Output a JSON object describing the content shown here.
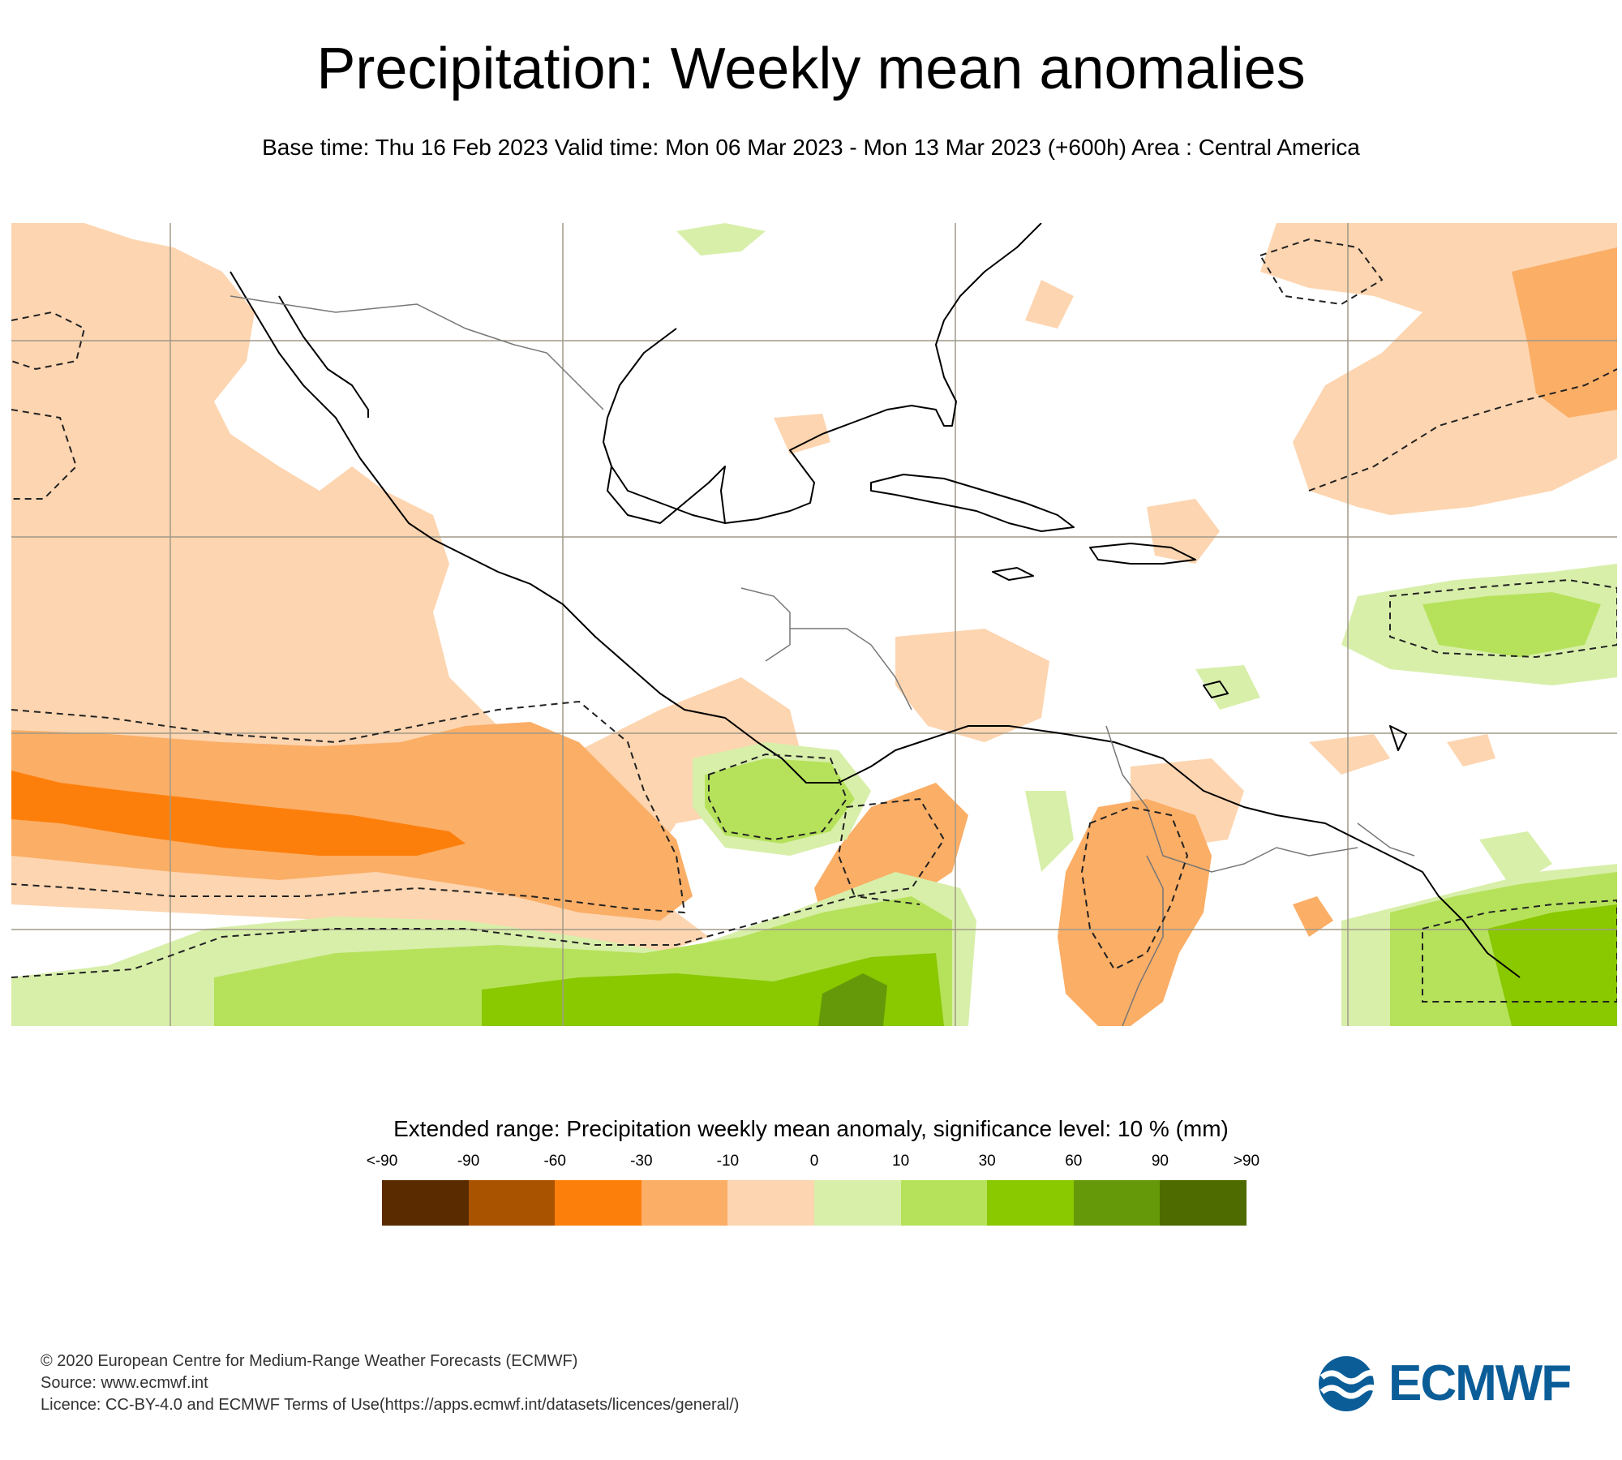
{
  "header": {
    "title": "Precipitation: Weekly mean anomalies",
    "subtitle": "Base time: Thu 16 Feb 2023 Valid time: Mon 06 Mar 2023 - Mon 13 Mar 2023 (+600h) Area : Central America"
  },
  "map": {
    "region": "Central America",
    "colors": {
      "light_orange": "#fdd5b0",
      "mid_orange": "#fbae66",
      "strong_orange": "#fd7f0b",
      "light_green": "#d8efaa",
      "mid_green": "#b6e25b",
      "strong_green": "#8ac800",
      "dark_green": "#66990a",
      "coastline": "#000000",
      "border": "#777777",
      "grid": "#a09a88"
    }
  },
  "legend": {
    "title": "Extended range: Precipitation weekly mean anomaly, significance level: 10 % (mm)",
    "labels": [
      "<-90",
      "-90",
      "-60",
      "-30",
      "-10",
      "0",
      "10",
      "30",
      "60",
      "90",
      ">90"
    ],
    "colors": [
      "#5b2b00",
      "#a95200",
      "#fd7f0b",
      "#fbae66",
      "#fdd5b0",
      "#d8efaa",
      "#b6e25b",
      "#8ac800",
      "#66990a",
      "#4e6b00"
    ]
  },
  "footer": {
    "copyright": "© 2020 European Centre for Medium-Range Weather Forecasts (ECMWF)",
    "source": "Source: www.ecmwf.int",
    "licence": "Licence: CC-BY-4.0 and ECMWF Terms of Use(https://apps.ecmwf.int/datasets/licences/general/)"
  },
  "logo": {
    "text": "ECMWF",
    "color": "#0b5d98"
  }
}
